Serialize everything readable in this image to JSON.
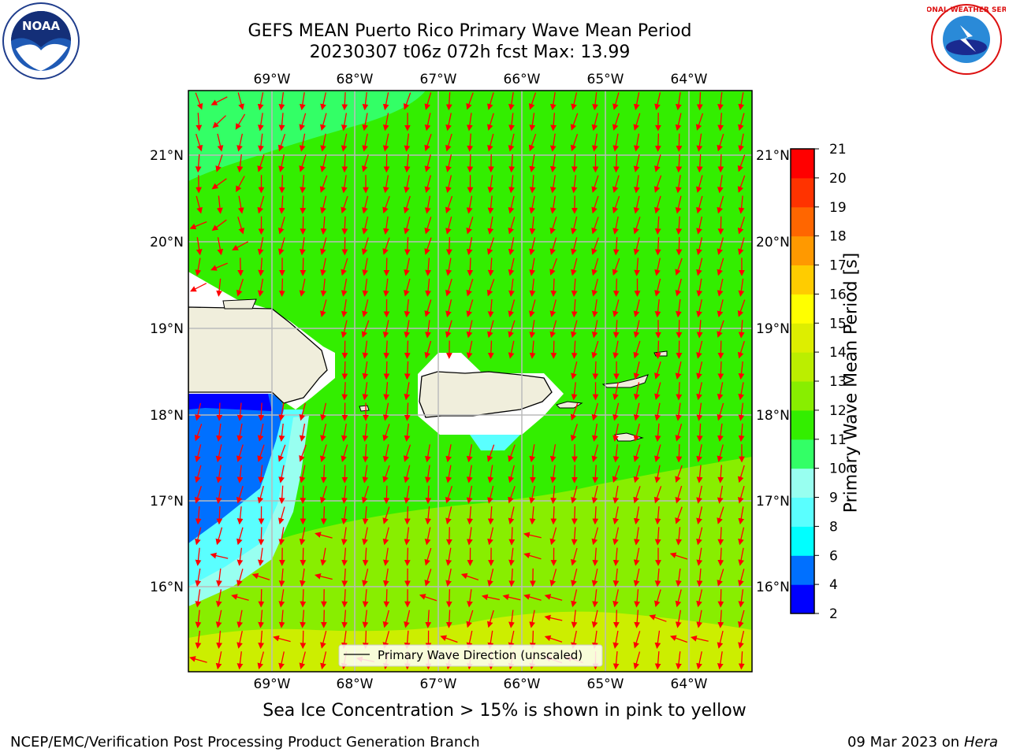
{
  "title_line1": "GEFS MEAN Puerto Rico Primary Wave Mean Period",
  "title_line2": "20230307 t06z 072h fcst   Max: 13.99",
  "lon_labels": [
    "69°W",
    "68°W",
    "67°W",
    "66°W",
    "65°W",
    "64°W"
  ],
  "lat_labels": [
    "21°N",
    "20°N",
    "19°N",
    "18°N",
    "17°N",
    "16°N"
  ],
  "legend_label": "Primary Wave Direction (unscaled)",
  "colorbar": {
    "label": "Primary Wave Mean Period [s]",
    "ticks": [
      "2",
      "4",
      "6",
      "8",
      "9",
      "10",
      "11",
      "12",
      "13",
      "14",
      "15",
      "16",
      "17",
      "18",
      "19",
      "20",
      "21"
    ],
    "colors": [
      "#0000ff",
      "#0070ff",
      "#00ffff",
      "#5affff",
      "#98fff0",
      "#33ff66",
      "#33ee00",
      "#88ee00",
      "#bbee00",
      "#ddee00",
      "#ffff00",
      "#ffcc00",
      "#ff9900",
      "#ff6600",
      "#ff3300",
      "#ff0000"
    ]
  },
  "caption": "Sea Ice Concentration > 15% is shown in pink to yellow",
  "footer_left": "NCEP/EMC/Verification Post Processing Product Generation Branch",
  "footer_right_date": "09 Mar 2023 on",
  "footer_right_host": "Hera",
  "logos": {
    "left": "noaa-logo",
    "right": "nws-logo",
    "noaa_text": "NOAA",
    "nws_text": "NATIONAL WEATHER SERVICE"
  },
  "colors": {
    "arrow": "#ff0000",
    "land": "#f0eedc",
    "grid": "#bbbbbb"
  }
}
